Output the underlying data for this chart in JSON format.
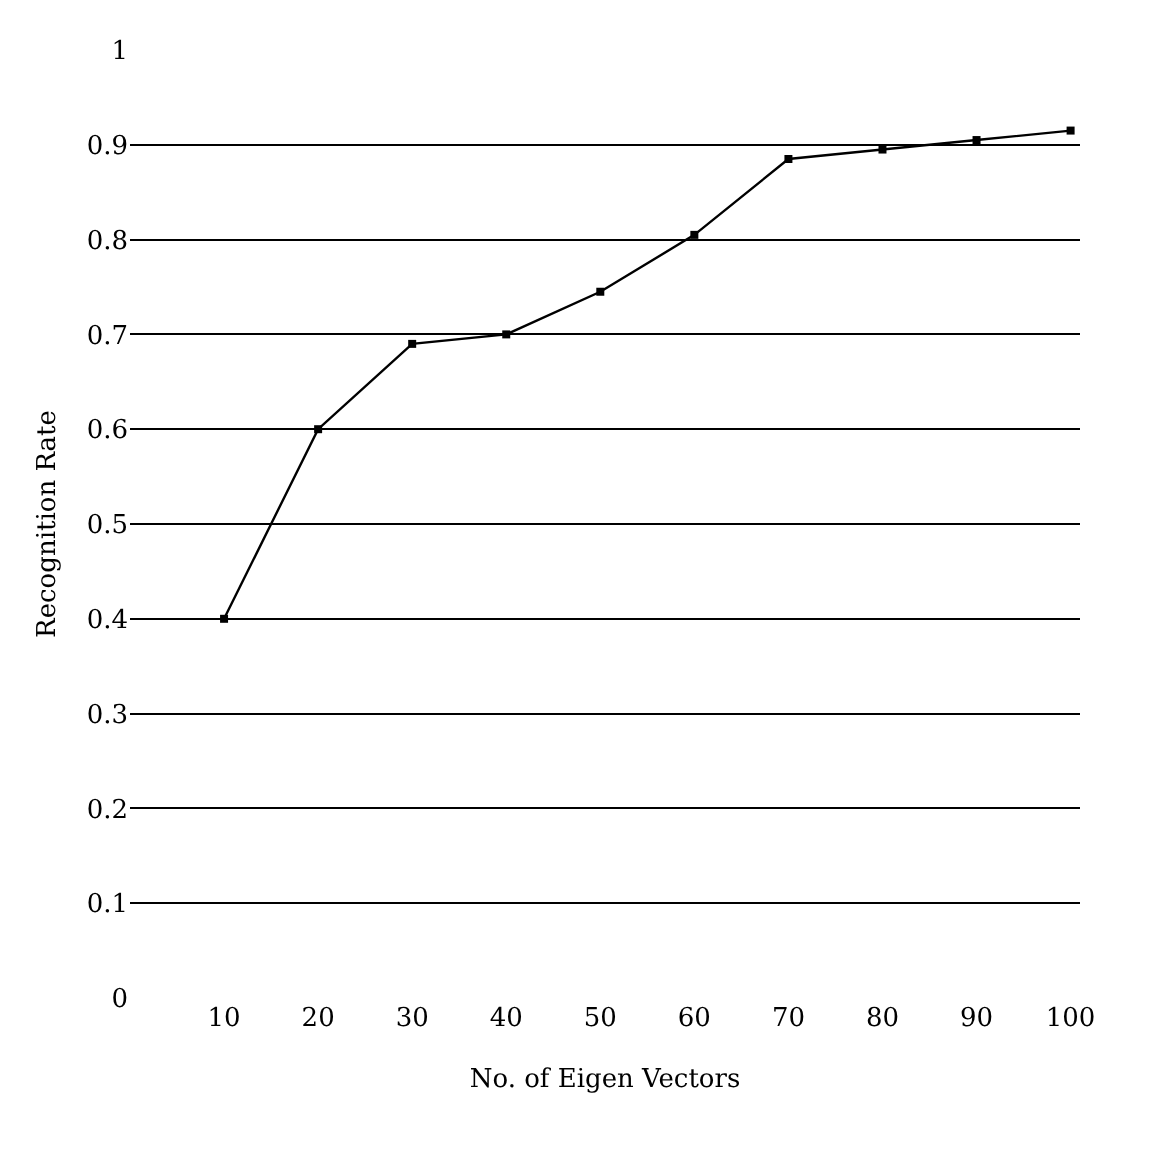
{
  "chart_data": {
    "type": "line",
    "xlabel": "No. of Eigen Vectors",
    "ylabel": "Recognition Rate",
    "x": [
      10,
      20,
      30,
      40,
      50,
      60,
      70,
      80,
      90,
      100
    ],
    "series": [
      {
        "color": "#000000",
        "values": [
          0.4,
          0.6,
          0.69,
          0.7,
          0.745,
          0.805,
          0.885,
          0.895,
          0.905,
          0.915
        ]
      }
    ],
    "xlim": [
      0,
      101
    ],
    "xticks": [
      10,
      20,
      30,
      40,
      50,
      60,
      70,
      80,
      90,
      100
    ],
    "ylim": [
      0,
      1
    ],
    "yticks": [
      0,
      0.1,
      0.2,
      0.3,
      0.4,
      0.5,
      0.6,
      0.7,
      0.8,
      0.9,
      1
    ],
    "grid": "y",
    "marker": "square",
    "line_style": "solid"
  }
}
